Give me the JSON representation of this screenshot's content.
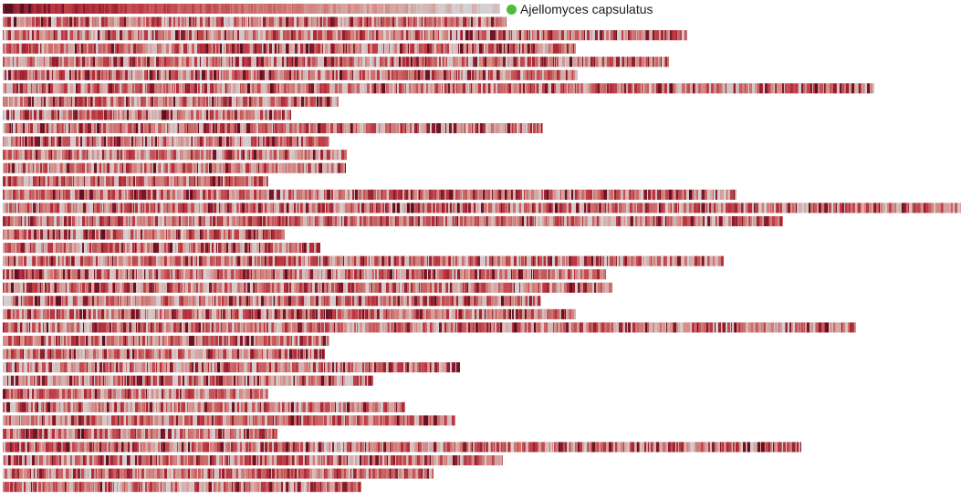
{
  "chart_data": {
    "type": "heatmap",
    "title": "",
    "xlabel": "",
    "ylabel": "",
    "legend_position": "top-right of first track",
    "grid": false,
    "highlight": {
      "label": "Ajellomyces capsulatus",
      "color": "#4bbf3a"
    },
    "color_scale": {
      "low": "#d5d0d2",
      "mid": "#d48a84",
      "high": "#b9303c",
      "max": "#5a0f22"
    },
    "tracks": [
      {
        "length": 545
      },
      {
        "length": 552
      },
      {
        "length": 750
      },
      {
        "length": 628
      },
      {
        "length": 730
      },
      {
        "length": 630
      },
      {
        "length": 955
      },
      {
        "length": 368
      },
      {
        "length": 316
      },
      {
        "length": 592
      },
      {
        "length": 358
      },
      {
        "length": 377
      },
      {
        "length": 376
      },
      {
        "length": 291
      },
      {
        "length": 804
      },
      {
        "length": 1050
      },
      {
        "length": 855
      },
      {
        "length": 309
      },
      {
        "length": 348
      },
      {
        "length": 790
      },
      {
        "length": 661
      },
      {
        "length": 668
      },
      {
        "length": 590
      },
      {
        "length": 628
      },
      {
        "length": 935
      },
      {
        "length": 358
      },
      {
        "length": 353
      },
      {
        "length": 501
      },
      {
        "length": 406
      },
      {
        "length": 291
      },
      {
        "length": 441
      },
      {
        "length": 496
      },
      {
        "length": 301
      },
      {
        "length": 875
      },
      {
        "length": 548
      },
      {
        "length": 472
      },
      {
        "length": 393
      }
    ]
  }
}
